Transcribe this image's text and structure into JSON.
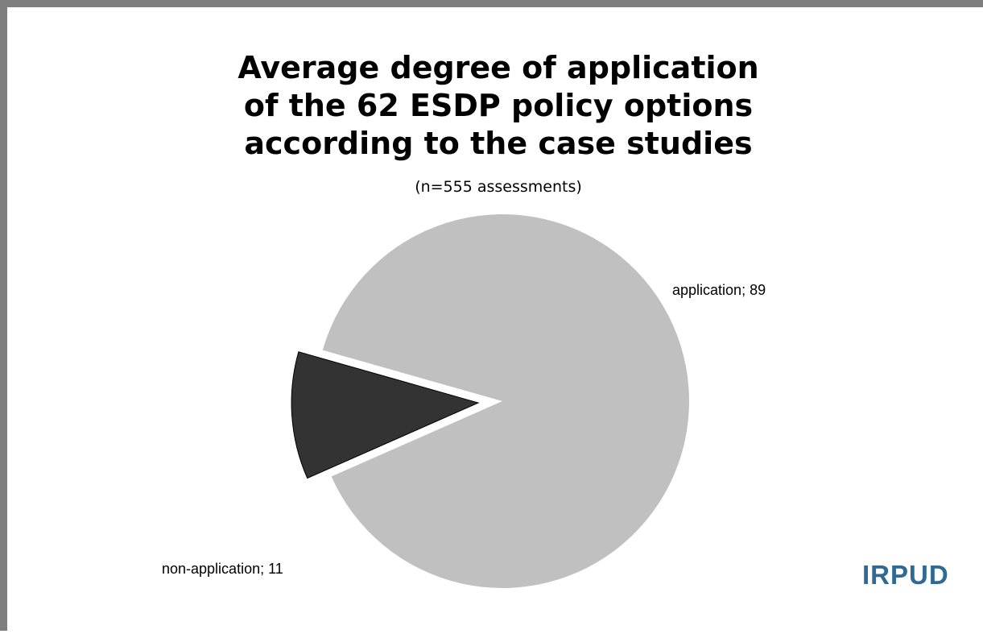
{
  "chart_data": {
    "type": "pie",
    "title_lines": [
      "Average degree of application",
      "of the 62 ESDP policy options",
      "according to the case studies"
    ],
    "subtitle": "(n=555 assessments)",
    "slices": [
      {
        "label": "application",
        "value": 89,
        "color": "#c0c0c0",
        "exploded": false,
        "data_label": "application; 89"
      },
      {
        "label": "non-application",
        "value": 11,
        "color": "#333333",
        "exploded": true,
        "data_label": "non-application; 11"
      }
    ],
    "legend": "none"
  },
  "logo": {
    "text": "IRPUD",
    "color": "#2f6a94"
  },
  "frame_color": "#7f7f7f"
}
